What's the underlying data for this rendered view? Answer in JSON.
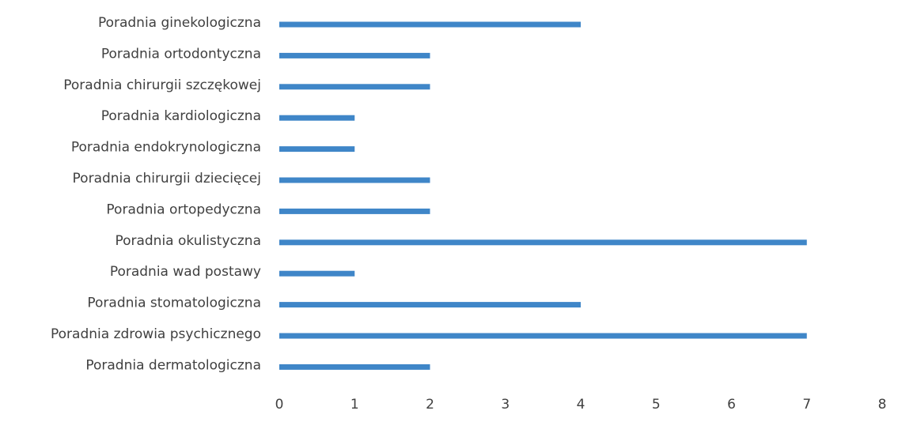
{
  "chart_data": {
    "type": "bar",
    "orientation": "horizontal",
    "categories": [
      "Poradnia ginekologiczna",
      "Poradnia ortodontyczna",
      "Poradnia chirurgii szczękowej",
      "Poradnia kardiologiczna",
      "Poradnia endokrynologiczna",
      "Poradnia chirurgii dziecięcej",
      "Poradnia ortopedyczna",
      "Poradnia okulistyczna",
      "Poradnia wad postawy",
      "Poradnia stomatologiczna",
      "Poradnia zdrowia psychicznego",
      "Poradnia dermatologiczna"
    ],
    "values": [
      4,
      2,
      2,
      1,
      1,
      2,
      2,
      7,
      1,
      4,
      7,
      2
    ],
    "x_ticks": [
      0,
      1,
      2,
      3,
      4,
      5,
      6,
      7,
      8
    ],
    "xlim": [
      0,
      8
    ],
    "title": "",
    "xlabel": "",
    "ylabel": "",
    "grid": false,
    "legend": "none",
    "bar_color": "#3f86c8",
    "text_color": "#404040"
  }
}
